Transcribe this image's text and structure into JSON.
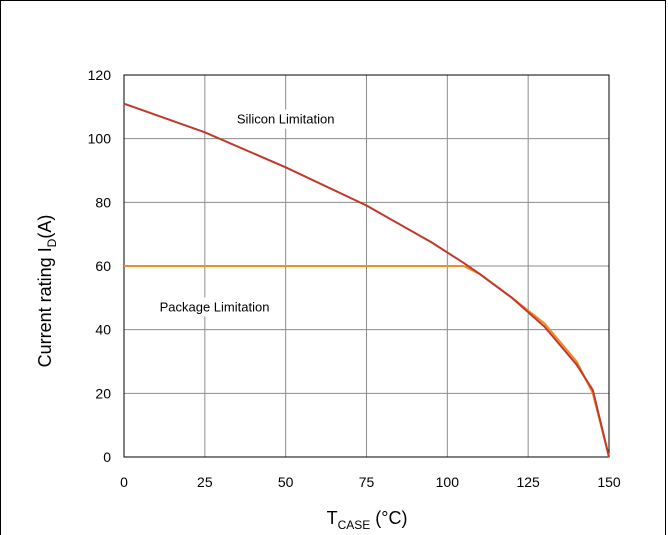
{
  "chart_data": {
    "type": "line",
    "title": "",
    "xlabel": {
      "main": "T",
      "sub": "CASE",
      "unit": " (°C)"
    },
    "ylabel": {
      "main": "Current rating I",
      "sub": "D",
      "unit": "(A)"
    },
    "xlim": [
      0,
      150
    ],
    "ylim": [
      0,
      120
    ],
    "xticks": [
      0,
      25,
      50,
      75,
      100,
      125,
      150
    ],
    "yticks": [
      0,
      20,
      40,
      60,
      80,
      100,
      120
    ],
    "grid": true,
    "annotations": [
      {
        "text": "Silicon Limitation",
        "x": 50,
        "y": 106
      },
      {
        "text": "Package Limitation",
        "x": 28,
        "y": 47
      }
    ],
    "series": [
      {
        "color": "#f28c28",
        "x": [
          0,
          105,
          110,
          120,
          130,
          140,
          145,
          150
        ],
        "y": [
          60,
          60,
          57.5,
          50,
          42,
          30,
          20,
          0
        ]
      },
      {
        "color": "#c0392b",
        "x": [
          0,
          25,
          50,
          75,
          95,
          105,
          110,
          120,
          130,
          140,
          145,
          150
        ],
        "y": [
          111,
          102,
          91,
          79,
          67.5,
          61,
          57.5,
          50,
          41,
          29,
          21,
          0
        ]
      }
    ]
  }
}
